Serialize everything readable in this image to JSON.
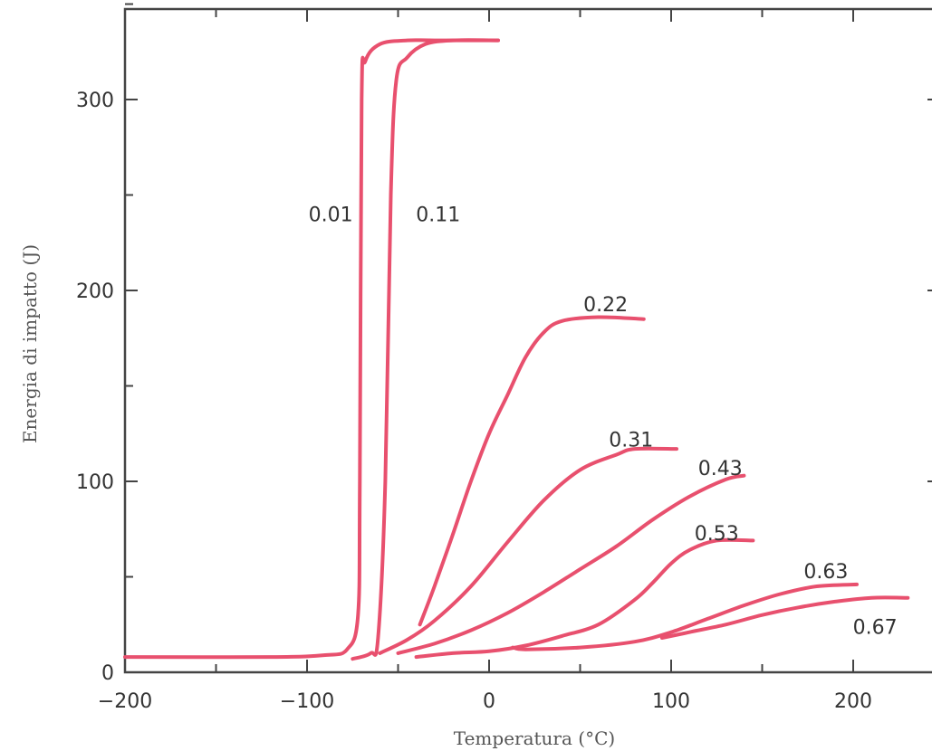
{
  "chart_data": {
    "type": "line",
    "title": "",
    "xlabel": "Temperatura (°C)",
    "ylabel": "Energia di impatto (J)",
    "xlim": [
      -200,
      240
    ],
    "ylim": [
      0,
      350
    ],
    "xticks": [
      -200,
      -100,
      0,
      100,
      200
    ],
    "xtick_labels": [
      "−200",
      "−100",
      "0",
      "100",
      "200"
    ],
    "yticks": [
      0,
      100,
      200,
      300
    ],
    "ytick_labels": [
      "0",
      "100",
      "200",
      "300"
    ],
    "grid": false,
    "line_color": "#e8506e",
    "series": [
      {
        "name": "0.01",
        "x": [
          -200,
          -120,
          -90,
          -78,
          -72,
          -71,
          -70,
          -68,
          -60,
          -45,
          -30,
          5
        ],
        "y": [
          8,
          8,
          9,
          12,
          30,
          100,
          300,
          320,
          329,
          331,
          331,
          331
        ]
      },
      {
        "name": "0.11",
        "x": [
          -75,
          -65,
          -61,
          -57,
          -54,
          -51,
          -45,
          -35,
          -20,
          5
        ],
        "y": [
          7,
          10,
          18,
          100,
          250,
          310,
          322,
          329,
          331,
          331
        ]
      },
      {
        "name": "0.22",
        "x": [
          -38,
          -30,
          -20,
          -10,
          0,
          10,
          20,
          30,
          40,
          60,
          85
        ],
        "y": [
          25,
          45,
          72,
          100,
          125,
          145,
          165,
          178,
          184,
          186,
          185
        ]
      },
      {
        "name": "0.31",
        "x": [
          -60,
          -45,
          -30,
          -10,
          10,
          30,
          50,
          70,
          80,
          103
        ],
        "y": [
          10,
          17,
          27,
          45,
          68,
          90,
          106,
          114,
          117,
          117
        ]
      },
      {
        "name": "0.43",
        "x": [
          -50,
          -30,
          -10,
          10,
          30,
          50,
          70,
          90,
          110,
          130,
          140
        ],
        "y": [
          10,
          15,
          22,
          31,
          42,
          54,
          66,
          80,
          92,
          101,
          103
        ]
      },
      {
        "name": "0.53",
        "x": [
          -40,
          -20,
          0,
          20,
          40,
          60,
          80,
          90,
          100,
          110,
          125,
          145
        ],
        "y": [
          8,
          10,
          11,
          14,
          19,
          25,
          38,
          47,
          57,
          64,
          69,
          69
        ]
      },
      {
        "name": "0.63",
        "x": [
          13,
          20,
          50,
          80,
          100,
          120,
          140,
          160,
          180,
          202
        ],
        "y": [
          13,
          12,
          13,
          16,
          21,
          28,
          35,
          41,
          45,
          46
        ]
      },
      {
        "name": "0.67",
        "x": [
          95,
          110,
          130,
          150,
          170,
          190,
          210,
          230
        ],
        "y": [
          18,
          21,
          25,
          30,
          34,
          37,
          39,
          39
        ]
      }
    ],
    "series_labels": [
      {
        "text": "0.01",
        "x": -87,
        "y": 240
      },
      {
        "text": "0.11",
        "x": -28,
        "y": 240
      },
      {
        "text": "0.22",
        "x": 64,
        "y": 193
      },
      {
        "text": "0.31",
        "x": 78,
        "y": 122
      },
      {
        "text": "0.43",
        "x": 127,
        "y": 107
      },
      {
        "text": "0.53",
        "x": 125,
        "y": 73
      },
      {
        "text": "0.63",
        "x": 185,
        "y": 53
      },
      {
        "text": "0.67",
        "x": 212,
        "y": 24
      }
    ]
  }
}
